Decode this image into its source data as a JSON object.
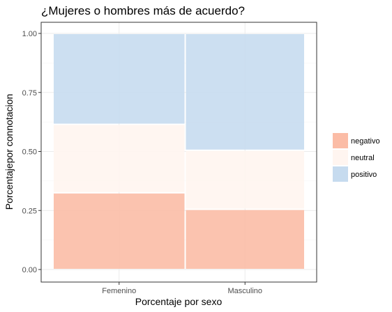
{
  "chart_data": {
    "type": "bar",
    "variant": "stacked-proportional",
    "title": "¿Mujeres o hombres más de acuerdo?",
    "xlabel": "Porcentaje por sexo",
    "ylabel": "Porcentajepor connotacion",
    "categories": [
      "Femenino",
      "Masculino"
    ],
    "category_widths": [
      0.525,
      0.475
    ],
    "series": [
      {
        "name": "negativo",
        "values": [
          0.325,
          0.255
        ],
        "color": "#fbbca6"
      },
      {
        "name": "neutral",
        "values": [
          0.29,
          0.25
        ],
        "color": "#fff5f0"
      },
      {
        "name": "positivo",
        "values": [
          0.385,
          0.495
        ],
        "color": "#c6dbef"
      }
    ],
    "ylim": [
      0,
      1
    ],
    "yticks": [
      "0.00",
      "0.25",
      "0.50",
      "0.75",
      "1.00"
    ],
    "ytick_values": [
      0,
      0.25,
      0.5,
      0.75,
      1
    ],
    "grid": true,
    "legend_position": "right"
  }
}
